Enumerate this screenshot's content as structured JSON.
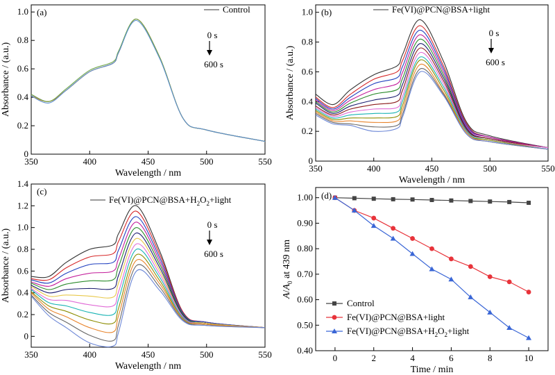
{
  "chart_data": [
    {
      "panel": "(a)",
      "type": "line",
      "xlabel": "Wavelength / nm",
      "ylabel": "Absorbance / (a.u.)",
      "xlim": [
        350,
        550
      ],
      "ylim": [
        0,
        1.05
      ],
      "xticks": [
        350,
        400,
        450,
        500,
        550
      ],
      "yticks": [
        0,
        0.2,
        0.4,
        0.6,
        0.8,
        1.0
      ],
      "legend": [
        {
          "label": "Control"
        }
      ],
      "time_start": "0 s",
      "time_end": "600 s",
      "series": [
        {
          "color": "#333333",
          "x": [
            350,
            365,
            380,
            400,
            420,
            425,
            440,
            460,
            480,
            500,
            550
          ],
          "y": [
            0.42,
            0.37,
            0.45,
            0.58,
            0.64,
            0.72,
            0.95,
            0.68,
            0.25,
            0.17,
            0.09
          ]
        },
        {
          "color": "#e8832a",
          "x": [
            350,
            365,
            380,
            400,
            420,
            425,
            440,
            460,
            480,
            500,
            550
          ],
          "y": [
            0.41,
            0.37,
            0.45,
            0.58,
            0.64,
            0.72,
            0.95,
            0.68,
            0.25,
            0.17,
            0.09
          ]
        },
        {
          "color": "#6fa74b",
          "x": [
            350,
            365,
            380,
            400,
            420,
            425,
            440,
            460,
            480,
            500,
            550
          ],
          "y": [
            0.42,
            0.37,
            0.46,
            0.59,
            0.65,
            0.73,
            0.95,
            0.68,
            0.25,
            0.17,
            0.09
          ]
        },
        {
          "color": "#5b8fd1",
          "x": [
            350,
            365,
            380,
            400,
            420,
            425,
            440,
            460,
            480,
            500,
            550
          ],
          "y": [
            0.41,
            0.36,
            0.45,
            0.58,
            0.64,
            0.72,
            0.94,
            0.67,
            0.25,
            0.17,
            0.09
          ]
        }
      ]
    },
    {
      "panel": "(b)",
      "type": "line",
      "xlabel": "Wavelength / nm",
      "ylabel": "Absorbance / (a.u.)",
      "xlim": [
        350,
        550
      ],
      "ylim": [
        0,
        1.05
      ],
      "xticks": [
        350,
        400,
        450,
        500,
        550
      ],
      "yticks": [
        0,
        0.2,
        0.4,
        0.6,
        0.8,
        1.0
      ],
      "legend": [
        {
          "label": "Fe(VI)@PCN@BSA+light"
        }
      ],
      "time_start": "0 s",
      "time_end": "600 s",
      "series": [
        {
          "color": "#333333",
          "x": [
            350,
            365,
            380,
            400,
            420,
            425,
            440,
            460,
            480,
            500,
            550
          ],
          "y": [
            0.45,
            0.38,
            0.48,
            0.58,
            0.64,
            0.72,
            0.95,
            0.67,
            0.26,
            0.17,
            0.09
          ]
        },
        {
          "color": "#d62728",
          "x": [
            350,
            365,
            380,
            400,
            420,
            425,
            440,
            460,
            480,
            500,
            550
          ],
          "y": [
            0.43,
            0.36,
            0.45,
            0.55,
            0.6,
            0.68,
            0.91,
            0.64,
            0.25,
            0.16,
            0.09
          ]
        },
        {
          "color": "#1f3fbf",
          "x": [
            350,
            365,
            380,
            400,
            420,
            425,
            440,
            460,
            480,
            500,
            550
          ],
          "y": [
            0.42,
            0.35,
            0.43,
            0.52,
            0.56,
            0.64,
            0.88,
            0.62,
            0.24,
            0.16,
            0.09
          ]
        },
        {
          "color": "#c21b9a",
          "x": [
            350,
            365,
            380,
            400,
            420,
            425,
            440,
            460,
            480,
            500,
            550
          ],
          "y": [
            0.41,
            0.34,
            0.41,
            0.48,
            0.52,
            0.6,
            0.85,
            0.6,
            0.23,
            0.16,
            0.09
          ]
        },
        {
          "color": "#2a8a2a",
          "x": [
            350,
            365,
            380,
            400,
            420,
            425,
            440,
            460,
            480,
            500,
            550
          ],
          "y": [
            0.4,
            0.33,
            0.39,
            0.45,
            0.48,
            0.56,
            0.82,
            0.58,
            0.22,
            0.15,
            0.09
          ]
        },
        {
          "color": "#1a1a6e",
          "x": [
            350,
            365,
            380,
            400,
            420,
            425,
            440,
            460,
            480,
            500,
            550
          ],
          "y": [
            0.39,
            0.32,
            0.37,
            0.41,
            0.44,
            0.52,
            0.79,
            0.56,
            0.22,
            0.15,
            0.09
          ]
        },
        {
          "color": "#8b1a1a",
          "x": [
            350,
            365,
            380,
            400,
            420,
            425,
            440,
            460,
            480,
            500,
            550
          ],
          "y": [
            0.37,
            0.31,
            0.35,
            0.38,
            0.4,
            0.48,
            0.76,
            0.54,
            0.21,
            0.15,
            0.09
          ]
        },
        {
          "color": "#e06ad6",
          "x": [
            350,
            365,
            380,
            400,
            420,
            425,
            440,
            460,
            480,
            500,
            550
          ],
          "y": [
            0.36,
            0.3,
            0.33,
            0.35,
            0.36,
            0.44,
            0.73,
            0.52,
            0.2,
            0.14,
            0.09
          ]
        },
        {
          "color": "#17b3b3",
          "x": [
            350,
            365,
            380,
            400,
            420,
            425,
            440,
            460,
            480,
            500,
            550
          ],
          "y": [
            0.35,
            0.29,
            0.31,
            0.32,
            0.33,
            0.41,
            0.7,
            0.5,
            0.2,
            0.14,
            0.08
          ]
        },
        {
          "color": "#8c8c00",
          "x": [
            350,
            365,
            380,
            400,
            420,
            425,
            440,
            460,
            480,
            500,
            550
          ],
          "y": [
            0.34,
            0.28,
            0.29,
            0.29,
            0.3,
            0.38,
            0.68,
            0.48,
            0.19,
            0.14,
            0.08
          ]
        },
        {
          "color": "#e8832a",
          "x": [
            350,
            365,
            380,
            400,
            420,
            425,
            440,
            460,
            480,
            500,
            550
          ],
          "y": [
            0.33,
            0.27,
            0.27,
            0.26,
            0.27,
            0.35,
            0.65,
            0.46,
            0.19,
            0.13,
            0.08
          ]
        },
        {
          "color": "#666666",
          "x": [
            350,
            365,
            380,
            400,
            420,
            425,
            440,
            460,
            480,
            500,
            550
          ],
          "y": [
            0.32,
            0.26,
            0.25,
            0.23,
            0.24,
            0.32,
            0.62,
            0.45,
            0.18,
            0.13,
            0.08
          ]
        },
        {
          "color": "#6b86d6",
          "x": [
            350,
            365,
            380,
            400,
            420,
            425,
            440,
            460,
            480,
            500,
            550
          ],
          "y": [
            0.31,
            0.25,
            0.24,
            0.2,
            0.22,
            0.3,
            0.6,
            0.44,
            0.18,
            0.13,
            0.08
          ]
        }
      ]
    },
    {
      "panel": "(c)",
      "type": "line",
      "xlabel": "Wavelength / nm",
      "ylabel": "Absorbance / (a.u.)",
      "xlim": [
        350,
        550
      ],
      "ylim": [
        -0.1,
        1.4
      ],
      "xticks": [
        350,
        400,
        450,
        500,
        550
      ],
      "yticks": [
        0,
        0.2,
        0.4,
        0.6,
        0.8,
        1.0,
        1.2,
        1.4
      ],
      "legend": [
        {
          "label": "Fe(VI)@PCN@BSA+H",
          "sub": "2",
          "mid": "O",
          "sub2": "2",
          "tail": "+light"
        }
      ],
      "time_start": "0 s",
      "time_end": "600 s",
      "series": [
        {
          "color": "#333333",
          "x": [
            350,
            365,
            380,
            400,
            420,
            425,
            440,
            460,
            480,
            500,
            550
          ],
          "y": [
            0.55,
            0.55,
            0.68,
            0.8,
            0.84,
            0.95,
            1.2,
            0.78,
            0.22,
            0.13,
            0.08
          ]
        },
        {
          "color": "#d62728",
          "x": [
            350,
            365,
            380,
            400,
            420,
            425,
            440,
            460,
            480,
            500,
            550
          ],
          "y": [
            0.53,
            0.52,
            0.63,
            0.73,
            0.76,
            0.88,
            1.15,
            0.75,
            0.22,
            0.13,
            0.08
          ]
        },
        {
          "color": "#1f3fbf",
          "x": [
            350,
            365,
            380,
            400,
            420,
            425,
            440,
            460,
            480,
            500,
            550
          ],
          "y": [
            0.52,
            0.49,
            0.58,
            0.66,
            0.68,
            0.8,
            1.1,
            0.72,
            0.21,
            0.13,
            0.08
          ]
        },
        {
          "color": "#c21b9a",
          "x": [
            350,
            365,
            380,
            400,
            420,
            425,
            440,
            460,
            480,
            500,
            550
          ],
          "y": [
            0.5,
            0.46,
            0.53,
            0.58,
            0.6,
            0.72,
            1.05,
            0.69,
            0.2,
            0.12,
            0.08
          ]
        },
        {
          "color": "#2a8a2a",
          "x": [
            350,
            365,
            380,
            400,
            420,
            425,
            440,
            460,
            480,
            500,
            550
          ],
          "y": [
            0.49,
            0.43,
            0.48,
            0.51,
            0.52,
            0.65,
            1.0,
            0.66,
            0.2,
            0.12,
            0.08
          ]
        },
        {
          "color": "#1a1a6e",
          "x": [
            350,
            365,
            380,
            400,
            420,
            425,
            440,
            460,
            480,
            500,
            550
          ],
          "y": [
            0.47,
            0.4,
            0.43,
            0.44,
            0.44,
            0.57,
            0.95,
            0.63,
            0.19,
            0.12,
            0.08
          ]
        },
        {
          "color": "#e8c84a",
          "x": [
            350,
            365,
            380,
            400,
            420,
            425,
            440,
            460,
            480,
            500,
            550
          ],
          "y": [
            0.46,
            0.37,
            0.38,
            0.37,
            0.36,
            0.5,
            0.9,
            0.6,
            0.18,
            0.12,
            0.08
          ]
        },
        {
          "color": "#e06ad6",
          "x": [
            350,
            365,
            380,
            400,
            420,
            425,
            440,
            460,
            480,
            500,
            550
          ],
          "y": [
            0.44,
            0.34,
            0.33,
            0.29,
            0.28,
            0.42,
            0.85,
            0.57,
            0.18,
            0.11,
            0.08
          ]
        },
        {
          "color": "#17b3b3",
          "x": [
            350,
            365,
            380,
            400,
            420,
            425,
            440,
            460,
            480,
            500,
            550
          ],
          "y": [
            0.43,
            0.31,
            0.28,
            0.22,
            0.2,
            0.35,
            0.8,
            0.54,
            0.17,
            0.11,
            0.08
          ]
        },
        {
          "color": "#8c8c00",
          "x": [
            350,
            365,
            380,
            400,
            420,
            425,
            440,
            460,
            480,
            500,
            550
          ],
          "y": [
            0.41,
            0.28,
            0.23,
            0.15,
            0.12,
            0.27,
            0.75,
            0.51,
            0.16,
            0.11,
            0.08
          ]
        },
        {
          "color": "#e8832a",
          "x": [
            350,
            365,
            380,
            400,
            420,
            425,
            440,
            460,
            480,
            500,
            550
          ],
          "y": [
            0.4,
            0.25,
            0.18,
            0.08,
            0.04,
            0.2,
            0.7,
            0.48,
            0.16,
            0.11,
            0.08
          ]
        },
        {
          "color": "#666666",
          "x": [
            350,
            365,
            380,
            400,
            420,
            425,
            440,
            460,
            480,
            500,
            550
          ],
          "y": [
            0.38,
            0.22,
            0.13,
            0.01,
            -0.04,
            0.12,
            0.65,
            0.45,
            0.15,
            0.1,
            0.08
          ]
        },
        {
          "color": "#6b86d6",
          "x": [
            350,
            365,
            380,
            400,
            420,
            425,
            440,
            460,
            480,
            500,
            550
          ],
          "y": [
            0.37,
            0.19,
            0.08,
            -0.06,
            -0.09,
            0.05,
            0.6,
            0.42,
            0.14,
            0.1,
            0.08
          ]
        }
      ]
    },
    {
      "panel": "(d)",
      "type": "line",
      "xlabel": "Time / min",
      "ylabel_italic_a": "A",
      "ylabel_slash": "/",
      "ylabel_italic_a0": "A",
      "ylabel_sub0": "0",
      "ylabel_rest": " at 439 nm",
      "xlim": [
        -1,
        11
      ],
      "ylim": [
        0.4,
        1.04
      ],
      "xticks": [
        0,
        2,
        4,
        6,
        8,
        10
      ],
      "yticks": [
        0.4,
        0.5,
        0.6,
        0.7,
        0.8,
        0.9,
        1.0
      ],
      "legend_position": "bottom-left",
      "series": [
        {
          "name": "Control",
          "marker": "square",
          "color": "#444444",
          "x": [
            0,
            1,
            2,
            3,
            4,
            5,
            6,
            7,
            8,
            9,
            10
          ],
          "y": [
            1.0,
            0.998,
            0.996,
            0.994,
            0.993,
            0.991,
            0.989,
            0.987,
            0.985,
            0.983,
            0.98
          ]
        },
        {
          "name": "Fe(VI)@PCN@BSA+light",
          "marker": "circle",
          "color": "#e8333a",
          "x": [
            0,
            1,
            2,
            3,
            4,
            5,
            6,
            7,
            8,
            9,
            10
          ],
          "y": [
            1.0,
            0.95,
            0.92,
            0.88,
            0.84,
            0.8,
            0.76,
            0.73,
            0.69,
            0.67,
            0.63
          ]
        },
        {
          "name": "Fe(VI)@PCN@BSA+H",
          "name_sub": "2",
          "name_mid": "O",
          "name_sub2": "2",
          "name_tail": "+light",
          "marker": "triangle",
          "color": "#3a66d6",
          "x": [
            0,
            1,
            2,
            3,
            4,
            5,
            6,
            7,
            8,
            9,
            10
          ],
          "y": [
            1.0,
            0.95,
            0.89,
            0.84,
            0.78,
            0.72,
            0.68,
            0.61,
            0.55,
            0.49,
            0.45
          ]
        }
      ]
    }
  ]
}
